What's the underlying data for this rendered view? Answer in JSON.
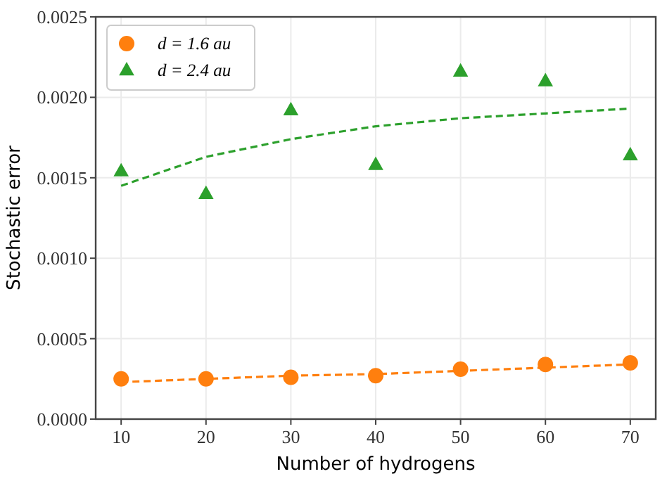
{
  "chart_data": {
    "type": "scatter",
    "xlabel": "Number of hydrogens",
    "ylabel": "Stochastic error",
    "x": [
      10,
      20,
      30,
      40,
      50,
      60,
      70
    ],
    "series": [
      {
        "name": "d = 1.6 au",
        "color": "#ff7f0e",
        "marker": "circle",
        "values": [
          0.00025,
          0.00025,
          0.00026,
          0.00027,
          0.00031,
          0.00034,
          0.00035
        ]
      },
      {
        "name": "d = 2.4 au",
        "color": "#2ca02c",
        "marker": "triangle",
        "values": [
          0.00154,
          0.0014,
          0.00192,
          0.00158,
          0.00216,
          0.0021,
          0.00164
        ]
      },
      {
        "type": "line",
        "color": "#ff7f0e",
        "line_style": "dashed",
        "values": [
          0.00023,
          0.00025,
          0.00027,
          0.00028,
          0.0003,
          0.00032,
          0.00034
        ]
      },
      {
        "type": "line",
        "color": "#2ca02c",
        "line_style": "dashed",
        "values": [
          0.00145,
          0.00163,
          0.00174,
          0.00182,
          0.00187,
          0.0019,
          0.00193
        ]
      }
    ],
    "xlim": [
      7,
      73
    ],
    "xticks": [
      10,
      20,
      30,
      40,
      50,
      60,
      70
    ],
    "ylim": [
      0,
      0.0025
    ],
    "yticks": [
      {
        "value": 0,
        "label": "0.0000"
      },
      {
        "value": 0.0005,
        "label": "0.0005"
      },
      {
        "value": 0.001,
        "label": "0.0010"
      },
      {
        "value": 0.0015,
        "label": "0.0015"
      },
      {
        "value": 0.002,
        "label": "0.0020"
      },
      {
        "value": 0.0025,
        "label": "0.0025"
      }
    ],
    "grid": true,
    "legend": "top left"
  }
}
